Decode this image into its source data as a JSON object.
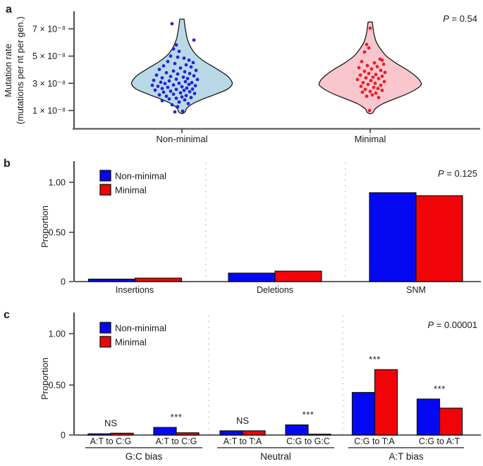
{
  "panels": {
    "a": {
      "label": "a",
      "p_label": "P",
      "p_value": " = 0.54",
      "ylabel_line1": "Mutation rate",
      "ylabel_line2": "(mutations per nt per gen.)",
      "yticks": [
        "7 × 10⁻⁸",
        "5 × 10⁻⁸",
        "3 × 10⁻⁸",
        "1 × 10⁻⁸"
      ],
      "xcategories": [
        "Non-minimal",
        "Minimal"
      ]
    },
    "b": {
      "label": "b",
      "p_label": "P",
      "p_value": " = 0.125",
      "ylabel": "Proportion",
      "yticks": [
        "1.00",
        "0.50",
        "0"
      ]
    },
    "c": {
      "label": "c",
      "p_label": "P",
      "p_value": " = 0.00001",
      "ylabel": "Proportion",
      "yticks": [
        "1.00",
        "0.50",
        "0"
      ]
    }
  },
  "colors": {
    "blue_bar": "#0408f0",
    "red_bar": "#f00408",
    "bar_outline": "#101010",
    "violin_blue_fill": "#b9d9e8",
    "violin_pink_fill": "#f9c6ce",
    "point_blue": "#2424d8",
    "point_red": "#e8202a",
    "divider_gray": "#c6c6c6",
    "axis_gray": "#66686b"
  },
  "chart_data": [
    {
      "type": "violin",
      "panel": "a",
      "title": "",
      "ylabel": "Mutation rate (mutations per nt per gen.)",
      "yticks_values_1e8": [
        1,
        3,
        5,
        7
      ],
      "ylim_1e8": [
        0.5,
        8.2
      ],
      "p_text": "P = 0.54",
      "groups": [
        {
          "name": "Non-minimal",
          "fill": "#b9d9e8",
          "point_color": "#2424d8",
          "tip_value": 0.78,
          "profile": [
            [
              7.72,
              3
            ],
            [
              7.3,
              4
            ],
            [
              6.8,
              5.5
            ],
            [
              6.2,
              8
            ],
            [
              5.6,
              13
            ],
            [
              5.1,
              20
            ],
            [
              4.6,
              32
            ],
            [
              4.1,
              48
            ],
            [
              3.6,
              63
            ],
            [
              3.2,
              70
            ],
            [
              2.9,
              71
            ],
            [
              2.55,
              64
            ],
            [
              2.2,
              48
            ],
            [
              1.85,
              30
            ],
            [
              1.55,
              17
            ],
            [
              1.3,
              9.5
            ],
            [
              1.1,
              6
            ],
            [
              0.9,
              4.5
            ]
          ],
          "points": [
            [
              -14,
              7.38
            ],
            [
              17,
              6.18
            ],
            [
              -8,
              5.82
            ],
            [
              -12,
              5.52
            ],
            [
              -4,
              5.35
            ],
            [
              -16,
              5.0
            ],
            [
              -6,
              4.92
            ],
            [
              3,
              4.85
            ],
            [
              10,
              4.7
            ],
            [
              -20,
              4.6
            ],
            [
              16,
              4.52
            ],
            [
              -10,
              4.45
            ],
            [
              6,
              4.35
            ],
            [
              -26,
              4.28
            ],
            [
              13,
              4.2
            ],
            [
              -2,
              4.12
            ],
            [
              -32,
              4.02
            ],
            [
              20,
              3.95
            ],
            [
              -12,
              3.9
            ],
            [
              4,
              3.85
            ],
            [
              -22,
              3.78
            ],
            [
              11,
              3.72
            ],
            [
              -6,
              3.68
            ],
            [
              -36,
              3.6
            ],
            [
              17,
              3.55
            ],
            [
              -16,
              3.5
            ],
            [
              2,
              3.45
            ],
            [
              -28,
              3.4
            ],
            [
              8,
              3.35
            ],
            [
              -8,
              3.3
            ],
            [
              22,
              3.28
            ],
            [
              -40,
              3.22
            ],
            [
              -18,
              3.18
            ],
            [
              5,
              3.12
            ],
            [
              -30,
              3.08
            ],
            [
              14,
              3.05
            ],
            [
              -4,
              3.0
            ],
            [
              -24,
              2.98
            ],
            [
              10,
              2.92
            ],
            [
              -12,
              2.88
            ],
            [
              -42,
              2.85
            ],
            [
              19,
              2.82
            ],
            [
              -34,
              2.78
            ],
            [
              0,
              2.75
            ],
            [
              -20,
              2.7
            ],
            [
              7,
              2.65
            ],
            [
              -28,
              2.62
            ],
            [
              15,
              2.58
            ],
            [
              -8,
              2.55
            ],
            [
              -38,
              2.5
            ],
            [
              3,
              2.48
            ],
            [
              -16,
              2.42
            ],
            [
              11,
              2.38
            ],
            [
              -26,
              2.35
            ],
            [
              -2,
              2.3
            ],
            [
              18,
              2.25
            ],
            [
              -12,
              2.2
            ],
            [
              -32,
              2.15
            ],
            [
              6,
              2.1
            ],
            [
              -22,
              2.05
            ],
            [
              0,
              2.0
            ],
            [
              13,
              1.95
            ],
            [
              -8,
              1.9
            ],
            [
              -18,
              1.85
            ],
            [
              4,
              1.78
            ],
            [
              -28,
              1.72
            ],
            [
              -4,
              1.62
            ],
            [
              9,
              1.5
            ],
            [
              -14,
              1.42
            ],
            [
              -6,
              1.28
            ],
            [
              1,
              0.95
            ],
            [
              -10,
              0.9
            ]
          ]
        },
        {
          "name": "Minimal",
          "fill": "#f9c6ce",
          "point_color": "#e8202a",
          "tip_value": 0.76,
          "profile": [
            [
              7.5,
              3
            ],
            [
              7.1,
              4
            ],
            [
              6.6,
              5.5
            ],
            [
              6.0,
              9
            ],
            [
              5.5,
              15
            ],
            [
              5.0,
              23
            ],
            [
              4.5,
              36
            ],
            [
              4.0,
              52
            ],
            [
              3.55,
              64
            ],
            [
              3.15,
              71
            ],
            [
              2.85,
              72
            ],
            [
              2.5,
              63
            ],
            [
              2.15,
              49
            ],
            [
              1.8,
              32
            ],
            [
              1.5,
              18
            ],
            [
              1.25,
              10
            ],
            [
              1.05,
              6
            ],
            [
              0.88,
              4.5
            ]
          ],
          "points": [
            [
              0,
              7.05
            ],
            [
              -5,
              5.85
            ],
            [
              -2,
              5.6
            ],
            [
              -8,
              5.3
            ],
            [
              14,
              4.78
            ],
            [
              17,
              4.7
            ],
            [
              -12,
              4.6
            ],
            [
              6,
              4.5
            ],
            [
              19,
              4.4
            ],
            [
              -4,
              4.3
            ],
            [
              10,
              4.22
            ],
            [
              -16,
              4.15
            ],
            [
              2,
              4.05
            ],
            [
              15,
              3.95
            ],
            [
              -8,
              3.88
            ],
            [
              21,
              3.8
            ],
            [
              -2,
              3.72
            ],
            [
              8,
              3.65
            ],
            [
              -14,
              3.6
            ],
            [
              17,
              3.52
            ],
            [
              4,
              3.45
            ],
            [
              -6,
              3.4
            ],
            [
              12,
              3.35
            ],
            [
              -18,
              3.28
            ],
            [
              1,
              3.2
            ],
            [
              20,
              3.12
            ],
            [
              -10,
              3.05
            ],
            [
              7,
              3.0
            ],
            [
              -3,
              2.92
            ],
            [
              15,
              2.85
            ],
            [
              -13,
              2.78
            ],
            [
              5,
              2.7
            ],
            [
              11,
              2.62
            ],
            [
              -7,
              2.55
            ],
            [
              17,
              2.48
            ],
            [
              0,
              2.4
            ],
            [
              -11,
              2.35
            ],
            [
              8,
              2.28
            ],
            [
              3,
              2.15
            ],
            [
              -5,
              2.05
            ],
            [
              12,
              1.95
            ],
            [
              -1,
              1.0
            ]
          ]
        }
      ]
    },
    {
      "type": "bar",
      "panel": "b",
      "title": "",
      "categories": [
        "Insertions",
        "Deletions",
        "SNM"
      ],
      "series": [
        {
          "name": "Non-minimal",
          "color": "#0408f0",
          "values": [
            0.025,
            0.085,
            0.895
          ]
        },
        {
          "name": "Minimal",
          "color": "#f00408",
          "values": [
            0.035,
            0.105,
            0.865
          ]
        }
      ],
      "ylabel": "Proportion",
      "ylim": [
        0,
        1.15
      ],
      "yticks": [
        0,
        0.5,
        1.0
      ],
      "legend_position": "top-left",
      "p_text": "P = 0.125"
    },
    {
      "type": "bar",
      "panel": "c",
      "title": "",
      "categories": [
        "A:T to C:G",
        "A:T to C:G",
        "A:T to T:A",
        "C:G to G:C",
        "C:G to T:A",
        "C:G to A:T"
      ],
      "groups": [
        {
          "label": "G:C bias",
          "category_indexes": [
            0,
            1
          ]
        },
        {
          "label": "Neutral",
          "category_indexes": [
            2,
            3
          ]
        },
        {
          "label": "A:T bias",
          "category_indexes": [
            4,
            5
          ]
        }
      ],
      "significance": [
        "NS",
        "***",
        "NS",
        "***",
        "***",
        "***"
      ],
      "series": [
        {
          "name": "Non-minimal",
          "color": "#0408f0",
          "values": [
            0.012,
            0.075,
            0.042,
            0.1,
            0.42,
            0.355
          ]
        },
        {
          "name": "Minimal",
          "color": "#f00408",
          "values": [
            0.018,
            0.022,
            0.042,
            0.008,
            0.645,
            0.265
          ]
        }
      ],
      "ylabel": "Proportion",
      "ylim": [
        0,
        1.15
      ],
      "yticks": [
        0,
        0.5,
        1.0
      ],
      "legend_position": "top-left",
      "p_text": "P = 0.00001"
    }
  ]
}
